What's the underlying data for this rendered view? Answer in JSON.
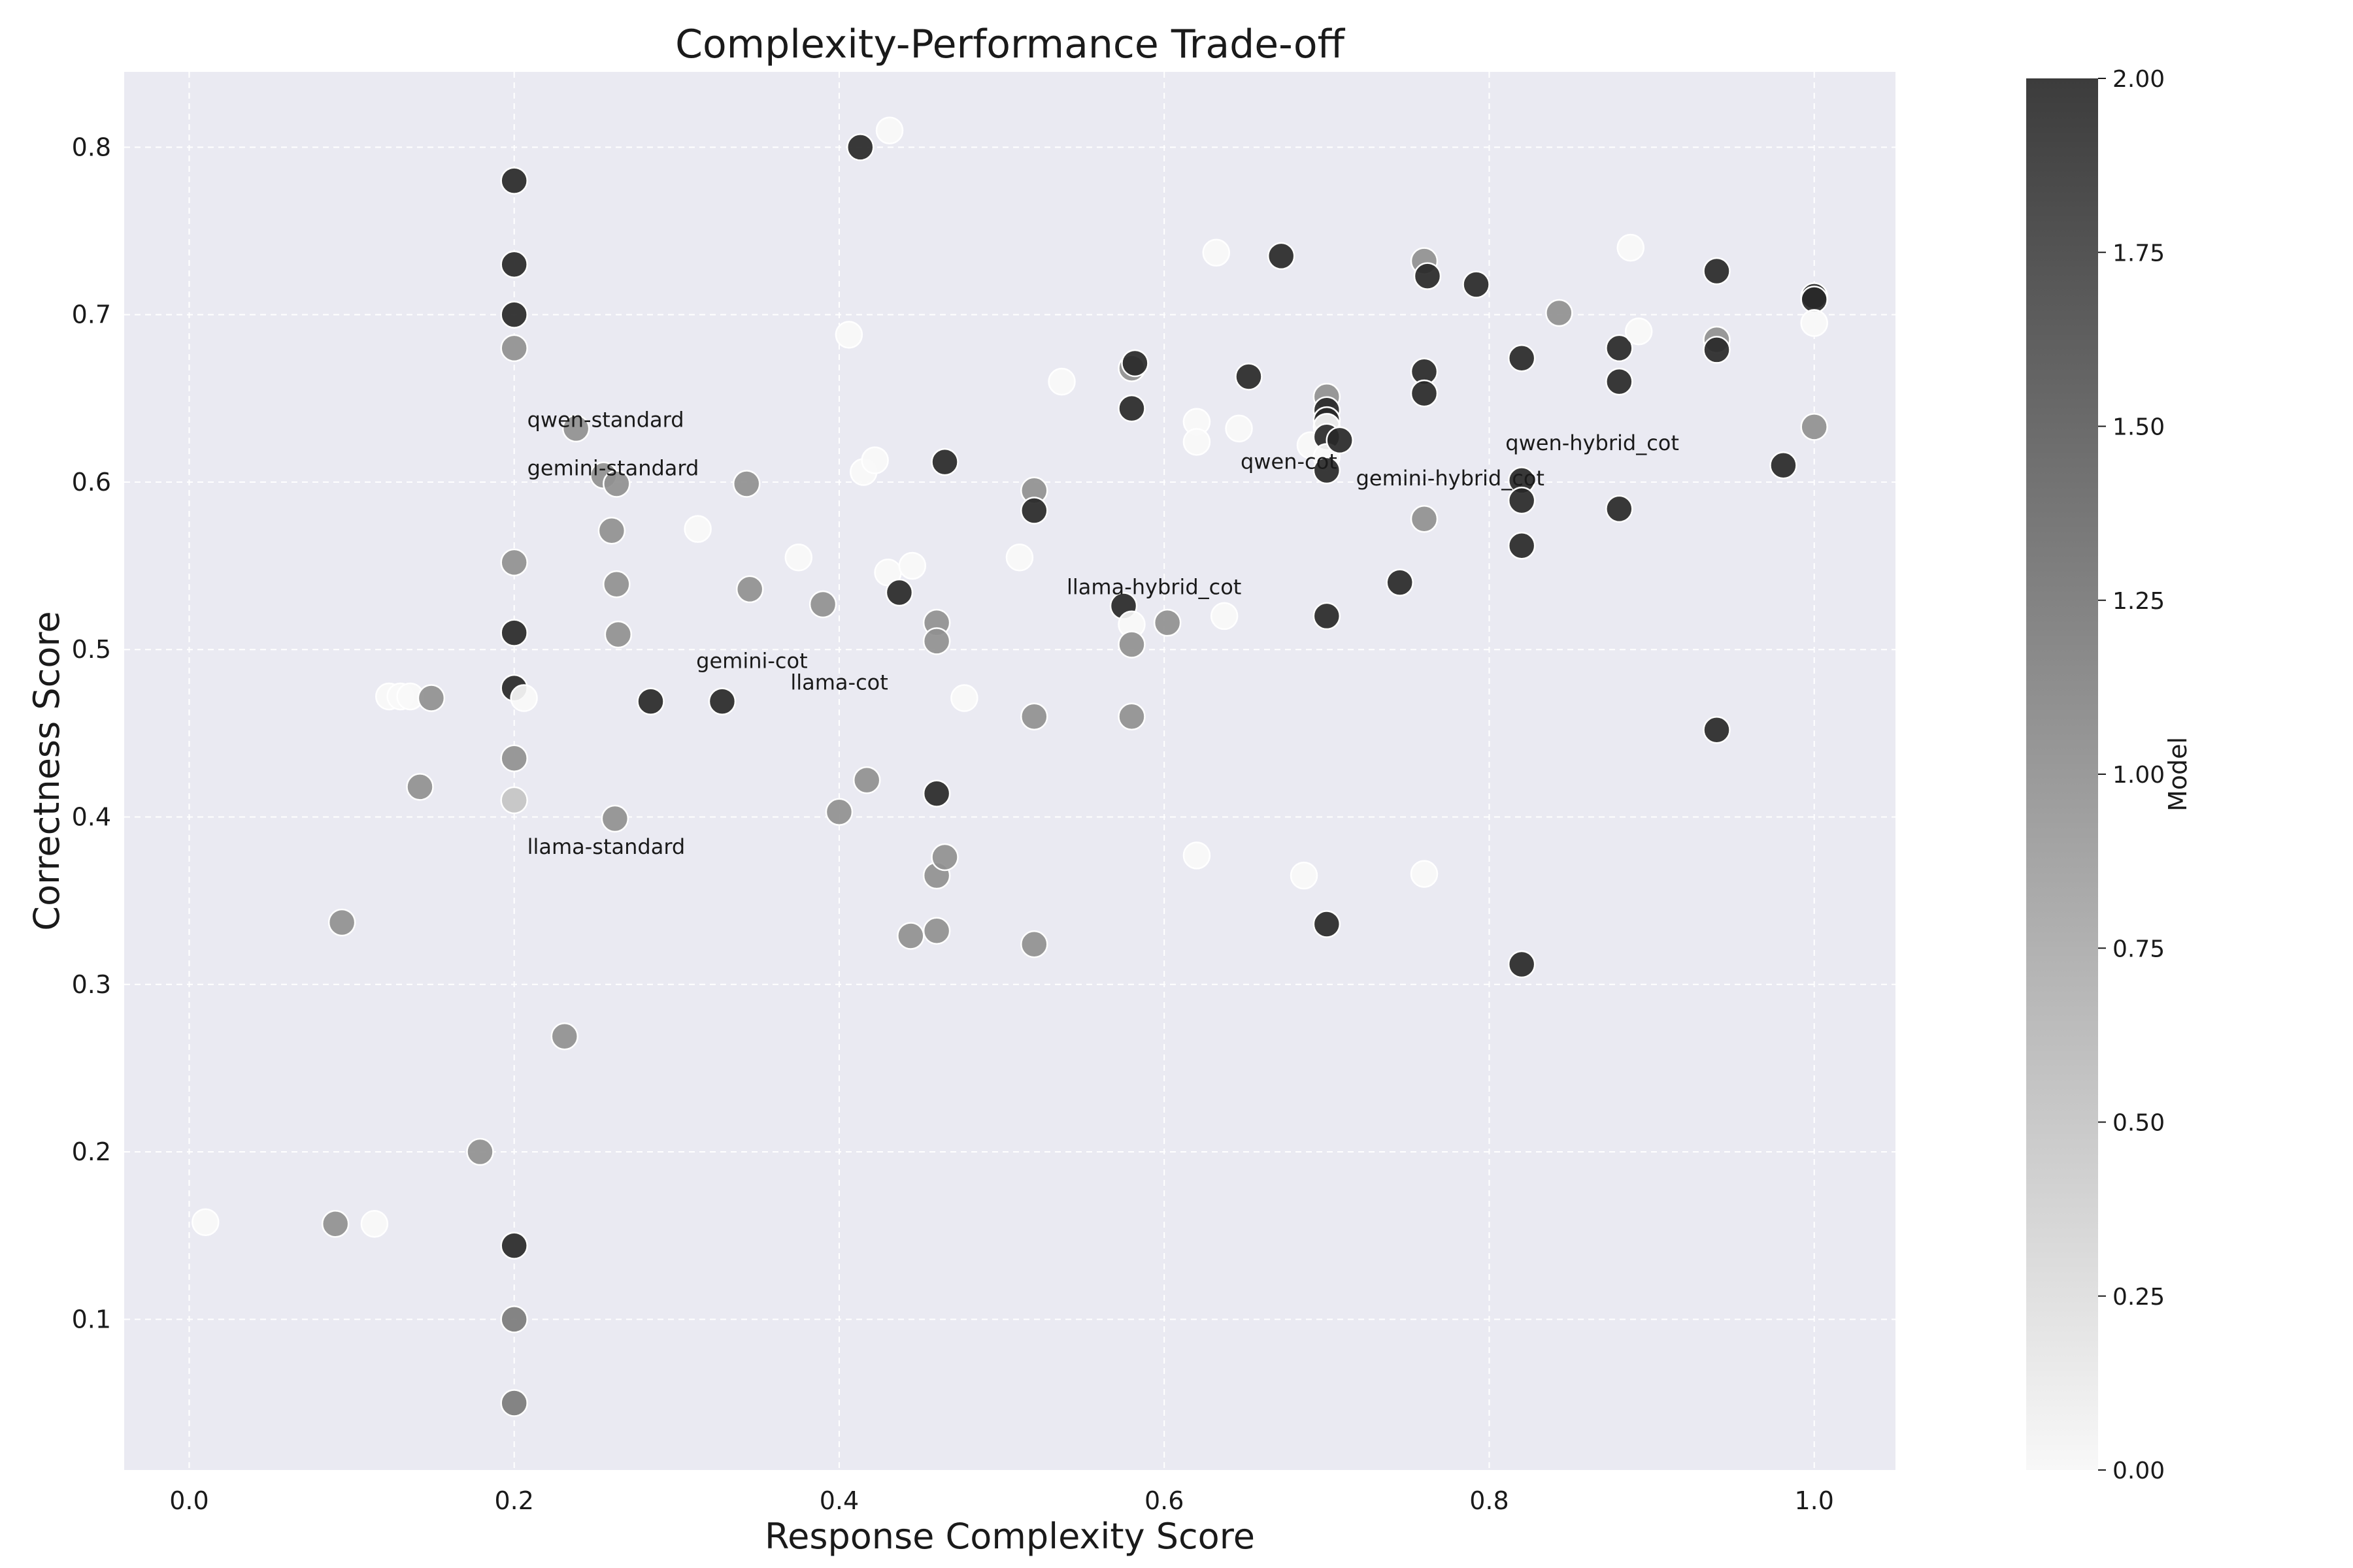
{
  "chart_data": {
    "type": "scatter",
    "title": "Complexity-Performance Trade-off",
    "xlabel": "Response Complexity Score",
    "ylabel": "Correctness Score",
    "xlim": [
      -0.04,
      1.05
    ],
    "ylim": [
      0.01,
      0.845
    ],
    "xticks": [
      0.0,
      0.2,
      0.4,
      0.6,
      0.8,
      1.0
    ],
    "xtick_labels": [
      "0.0",
      "0.2",
      "0.4",
      "0.6",
      "0.8",
      "1.0"
    ],
    "yticks": [
      0.1,
      0.2,
      0.3,
      0.4,
      0.5,
      0.6,
      0.7,
      0.8
    ],
    "ytick_labels": [
      "0.1",
      "0.2",
      "0.3",
      "0.4",
      "0.5",
      "0.6",
      "0.7",
      "0.8"
    ],
    "grid": true,
    "background_color": "#eaeaf2",
    "colorbar": {
      "label": "Model",
      "range": [
        0.0,
        2.0
      ],
      "ticks": [
        0.0,
        0.25,
        0.5,
        0.75,
        1.0,
        1.25,
        1.5,
        1.75,
        2.0
      ],
      "tick_labels": [
        "0.00",
        "0.25",
        "0.50",
        "0.75",
        "1.00",
        "1.25",
        "1.50",
        "1.75",
        "2.00"
      ],
      "low_color": "#f8f8f8",
      "high_color": "#3c3c3c"
    },
    "annotations": [
      {
        "text": "qwen-standard",
        "x": 0.208,
        "y": 0.633
      },
      {
        "text": "gemini-standard",
        "x": 0.208,
        "y": 0.604
      },
      {
        "text": "gemini-cot",
        "x": 0.312,
        "y": 0.489
      },
      {
        "text": "llama-cot",
        "x": 0.37,
        "y": 0.476
      },
      {
        "text": "llama-standard",
        "x": 0.208,
        "y": 0.378
      },
      {
        "text": "llama-hybrid_cot",
        "x": 0.54,
        "y": 0.533
      },
      {
        "text": "qwen-cot",
        "x": 0.647,
        "y": 0.608
      },
      {
        "text": "gemini-hybrid_cot",
        "x": 0.718,
        "y": 0.598
      },
      {
        "text": "qwen-hybrid_cot",
        "x": 0.81,
        "y": 0.619
      }
    ],
    "points": [
      {
        "x": 0.2,
        "y": 0.78,
        "model": 2
      },
      {
        "x": 0.2,
        "y": 0.73,
        "model": 2
      },
      {
        "x": 0.2,
        "y": 0.7,
        "model": 2
      },
      {
        "x": 0.2,
        "y": 0.68,
        "model": 1
      },
      {
        "x": 0.2,
        "y": 0.552,
        "model": 1
      },
      {
        "x": 0.2,
        "y": 0.51,
        "model": 2
      },
      {
        "x": 0.2,
        "y": 0.477,
        "model": 2
      },
      {
        "x": 0.2,
        "y": 0.435,
        "model": 1
      },
      {
        "x": 0.2,
        "y": 0.41,
        "model": 0.5
      },
      {
        "x": 0.2,
        "y": 0.144,
        "model": 2
      },
      {
        "x": 0.2,
        "y": 0.1,
        "model": 1.2
      },
      {
        "x": 0.2,
        "y": 0.05,
        "model": 1.2
      },
      {
        "x": 0.206,
        "y": 0.471,
        "model": 0
      },
      {
        "x": 0.01,
        "y": 0.158,
        "model": 0
      },
      {
        "x": 0.09,
        "y": 0.157,
        "model": 1
      },
      {
        "x": 0.094,
        "y": 0.337,
        "model": 1
      },
      {
        "x": 0.114,
        "y": 0.157,
        "model": 0
      },
      {
        "x": 0.123,
        "y": 0.472,
        "model": 0
      },
      {
        "x": 0.13,
        "y": 0.472,
        "model": 0
      },
      {
        "x": 0.136,
        "y": 0.472,
        "model": 0
      },
      {
        "x": 0.142,
        "y": 0.418,
        "model": 1
      },
      {
        "x": 0.149,
        "y": 0.471,
        "model": 1
      },
      {
        "x": 0.179,
        "y": 0.2,
        "model": 1
      },
      {
        "x": 0.231,
        "y": 0.269,
        "model": 1
      },
      {
        "x": 0.238,
        "y": 0.632,
        "model": 1
      },
      {
        "x": 0.255,
        "y": 0.604,
        "model": 1
      },
      {
        "x": 0.26,
        "y": 0.571,
        "model": 1
      },
      {
        "x": 0.262,
        "y": 0.399,
        "model": 1
      },
      {
        "x": 0.263,
        "y": 0.599,
        "model": 1
      },
      {
        "x": 0.263,
        "y": 0.539,
        "model": 1
      },
      {
        "x": 0.264,
        "y": 0.509,
        "model": 1
      },
      {
        "x": 0.284,
        "y": 0.469,
        "model": 2
      },
      {
        "x": 0.313,
        "y": 0.572,
        "model": 0
      },
      {
        "x": 0.328,
        "y": 0.469,
        "model": 2
      },
      {
        "x": 0.343,
        "y": 0.599,
        "model": 1
      },
      {
        "x": 0.345,
        "y": 0.536,
        "model": 1
      },
      {
        "x": 0.375,
        "y": 0.555,
        "model": 0
      },
      {
        "x": 0.39,
        "y": 0.527,
        "model": 1
      },
      {
        "x": 0.4,
        "y": 0.403,
        "model": 1
      },
      {
        "x": 0.406,
        "y": 0.688,
        "model": 0
      },
      {
        "x": 0.413,
        "y": 0.8,
        "model": 2
      },
      {
        "x": 0.415,
        "y": 0.606,
        "model": 0
      },
      {
        "x": 0.417,
        "y": 0.422,
        "model": 1
      },
      {
        "x": 0.422,
        "y": 0.613,
        "model": 0
      },
      {
        "x": 0.43,
        "y": 0.546,
        "model": 0
      },
      {
        "x": 0.431,
        "y": 0.81,
        "model": 0
      },
      {
        "x": 0.437,
        "y": 0.534,
        "model": 2
      },
      {
        "x": 0.444,
        "y": 0.329,
        "model": 1
      },
      {
        "x": 0.445,
        "y": 0.55,
        "model": 0
      },
      {
        "x": 0.46,
        "y": 0.516,
        "model": 1
      },
      {
        "x": 0.46,
        "y": 0.505,
        "model": 1
      },
      {
        "x": 0.46,
        "y": 0.414,
        "model": 2
      },
      {
        "x": 0.46,
        "y": 0.365,
        "model": 1
      },
      {
        "x": 0.46,
        "y": 0.332,
        "model": 1
      },
      {
        "x": 0.465,
        "y": 0.612,
        "model": 2
      },
      {
        "x": 0.465,
        "y": 0.376,
        "model": 1
      },
      {
        "x": 0.477,
        "y": 0.471,
        "model": 0
      },
      {
        "x": 0.511,
        "y": 0.555,
        "model": 0
      },
      {
        "x": 0.52,
        "y": 0.595,
        "model": 1
      },
      {
        "x": 0.52,
        "y": 0.583,
        "model": 2
      },
      {
        "x": 0.52,
        "y": 0.46,
        "model": 1
      },
      {
        "x": 0.52,
        "y": 0.324,
        "model": 1
      },
      {
        "x": 0.537,
        "y": 0.66,
        "model": 0
      },
      {
        "x": 0.575,
        "y": 0.526,
        "model": 2
      },
      {
        "x": 0.58,
        "y": 0.668,
        "model": 1
      },
      {
        "x": 0.58,
        "y": 0.644,
        "model": 2
      },
      {
        "x": 0.58,
        "y": 0.515,
        "model": 0
      },
      {
        "x": 0.58,
        "y": 0.503,
        "model": 1
      },
      {
        "x": 0.58,
        "y": 0.46,
        "model": 1
      },
      {
        "x": 0.582,
        "y": 0.671,
        "model": 2
      },
      {
        "x": 0.602,
        "y": 0.516,
        "model": 1
      },
      {
        "x": 0.62,
        "y": 0.636,
        "model": 0
      },
      {
        "x": 0.62,
        "y": 0.624,
        "model": 0
      },
      {
        "x": 0.62,
        "y": 0.377,
        "model": 0
      },
      {
        "x": 0.632,
        "y": 0.737,
        "model": 0
      },
      {
        "x": 0.637,
        "y": 0.52,
        "model": 0
      },
      {
        "x": 0.646,
        "y": 0.632,
        "model": 0
      },
      {
        "x": 0.652,
        "y": 0.663,
        "model": 2
      },
      {
        "x": 0.672,
        "y": 0.735,
        "model": 2
      },
      {
        "x": 0.686,
        "y": 0.365,
        "model": 0
      },
      {
        "x": 0.69,
        "y": 0.622,
        "model": 0
      },
      {
        "x": 0.7,
        "y": 0.651,
        "model": 1
      },
      {
        "x": 0.7,
        "y": 0.643,
        "model": 2
      },
      {
        "x": 0.7,
        "y": 0.637,
        "model": 2
      },
      {
        "x": 0.7,
        "y": 0.633,
        "model": 0
      },
      {
        "x": 0.7,
        "y": 0.627,
        "model": 2
      },
      {
        "x": 0.7,
        "y": 0.615,
        "model": 0
      },
      {
        "x": 0.7,
        "y": 0.607,
        "model": 2
      },
      {
        "x": 0.7,
        "y": 0.52,
        "model": 2
      },
      {
        "x": 0.7,
        "y": 0.336,
        "model": 2
      },
      {
        "x": 0.708,
        "y": 0.625,
        "model": 2
      },
      {
        "x": 0.745,
        "y": 0.54,
        "model": 2
      },
      {
        "x": 0.76,
        "y": 0.732,
        "model": 1
      },
      {
        "x": 0.76,
        "y": 0.666,
        "model": 2
      },
      {
        "x": 0.76,
        "y": 0.653,
        "model": 2
      },
      {
        "x": 0.76,
        "y": 0.578,
        "model": 1
      },
      {
        "x": 0.76,
        "y": 0.366,
        "model": 0
      },
      {
        "x": 0.762,
        "y": 0.723,
        "model": 2
      },
      {
        "x": 0.792,
        "y": 0.718,
        "model": 2
      },
      {
        "x": 0.82,
        "y": 0.674,
        "model": 2
      },
      {
        "x": 0.82,
        "y": 0.601,
        "model": 2
      },
      {
        "x": 0.82,
        "y": 0.589,
        "model": 2
      },
      {
        "x": 0.82,
        "y": 0.562,
        "model": 2
      },
      {
        "x": 0.82,
        "y": 0.312,
        "model": 2
      },
      {
        "x": 0.843,
        "y": 0.701,
        "model": 1
      },
      {
        "x": 0.88,
        "y": 0.68,
        "model": 2
      },
      {
        "x": 0.88,
        "y": 0.66,
        "model": 2
      },
      {
        "x": 0.88,
        "y": 0.584,
        "model": 2
      },
      {
        "x": 0.887,
        "y": 0.74,
        "model": 0
      },
      {
        "x": 0.892,
        "y": 0.69,
        "model": 0
      },
      {
        "x": 0.94,
        "y": 0.726,
        "model": 2
      },
      {
        "x": 0.94,
        "y": 0.685,
        "model": 1
      },
      {
        "x": 0.94,
        "y": 0.679,
        "model": 2
      },
      {
        "x": 0.94,
        "y": 0.452,
        "model": 2
      },
      {
        "x": 0.981,
        "y": 0.61,
        "model": 2
      },
      {
        "x": 1.0,
        "y": 0.711,
        "model": 2
      },
      {
        "x": 1.0,
        "y": 0.709,
        "model": 2
      },
      {
        "x": 1.0,
        "y": 0.695,
        "model": 0
      },
      {
        "x": 1.0,
        "y": 0.633,
        "model": 1
      }
    ]
  }
}
